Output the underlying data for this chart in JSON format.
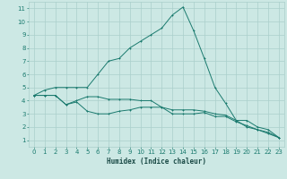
{
  "title": "",
  "xlabel": "Humidex (Indice chaleur)",
  "bg_color": "#cce8e4",
  "grid_color": "#aacfcb",
  "line_color": "#1a7a6e",
  "xlim": [
    -0.5,
    23.5
  ],
  "ylim": [
    0.5,
    11.5
  ],
  "xticks": [
    0,
    1,
    2,
    3,
    4,
    5,
    6,
    7,
    8,
    9,
    10,
    11,
    12,
    13,
    14,
    15,
    16,
    17,
    18,
    19,
    20,
    21,
    22,
    23
  ],
  "yticks": [
    1,
    2,
    3,
    4,
    5,
    6,
    7,
    8,
    9,
    10,
    11
  ],
  "line1_x": [
    0,
    1,
    2,
    3,
    4,
    5,
    6,
    7,
    8,
    9,
    10,
    11,
    12,
    13,
    14,
    15,
    16,
    17,
    18,
    19,
    20,
    21,
    22,
    23
  ],
  "line1_y": [
    4.4,
    4.8,
    5.0,
    5.0,
    5.0,
    5.0,
    6.0,
    7.0,
    7.2,
    8.0,
    8.5,
    9.0,
    9.5,
    10.5,
    11.1,
    9.3,
    7.2,
    5.0,
    3.8,
    2.5,
    2.0,
    1.8,
    1.5,
    1.2
  ],
  "line2_x": [
    0,
    1,
    2,
    3,
    4,
    5,
    6,
    7,
    8,
    9,
    10,
    11,
    12,
    13,
    14,
    15,
    16,
    17,
    18,
    19,
    20,
    21,
    22,
    23
  ],
  "line2_y": [
    4.4,
    4.4,
    4.4,
    3.7,
    4.0,
    4.3,
    4.3,
    4.1,
    4.1,
    4.1,
    4.0,
    4.0,
    3.5,
    3.3,
    3.3,
    3.3,
    3.2,
    3.0,
    2.9,
    2.5,
    2.5,
    2.0,
    1.8,
    1.2
  ],
  "line3_x": [
    0,
    1,
    2,
    3,
    4,
    5,
    6,
    7,
    8,
    9,
    10,
    11,
    12,
    13,
    14,
    15,
    16,
    17,
    18,
    19,
    20,
    21,
    22,
    23
  ],
  "line3_y": [
    4.4,
    4.4,
    4.4,
    3.7,
    3.9,
    3.2,
    3.0,
    3.0,
    3.2,
    3.3,
    3.5,
    3.5,
    3.5,
    3.0,
    3.0,
    3.0,
    3.1,
    2.8,
    2.8,
    2.4,
    2.1,
    1.8,
    1.6,
    1.2
  ],
  "tick_labelsize": 5.0,
  "xlabel_fontsize": 5.5,
  "lw": 0.7,
  "ms": 2.0,
  "mew": 0.7
}
